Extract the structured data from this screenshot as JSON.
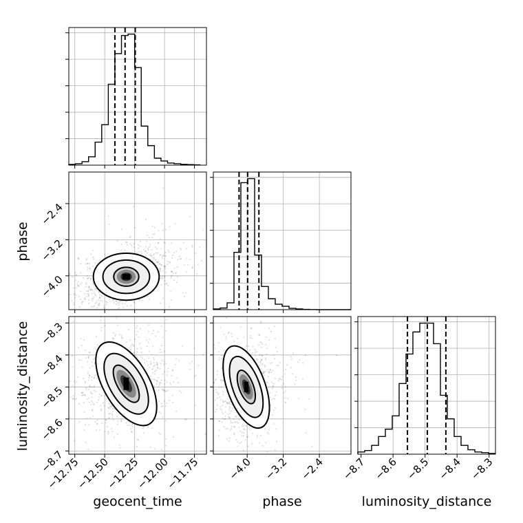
{
  "chart_data": {
    "type": "corner",
    "parameters": [
      "geocent_time",
      "phase",
      "luminosity_distance"
    ],
    "axes": {
      "geocent_time": {
        "range": [
          -12.8,
          -11.65
        ],
        "ticks": [
          -12.75,
          -12.5,
          -12.25,
          -12.0,
          -11.75
        ],
        "tick_labels": [
          "−12.75",
          "−12.50",
          "−12.25",
          "−12.00",
          "−11.75"
        ]
      },
      "phase": {
        "range": [
          -4.75,
          -1.7
        ],
        "ticks": [
          -4.0,
          -3.2,
          -2.4
        ],
        "tick_labels": [
          "−4.0",
          "−3.2",
          "−2.4"
        ]
      },
      "luminosity_distance": {
        "range": [
          -8.71,
          -8.28
        ],
        "ticks": [
          -8.7,
          -8.6,
          -8.5,
          -8.4,
          -8.3
        ],
        "tick_labels": [
          "−8.7",
          "−8.6",
          "−8.5",
          "−8.4",
          "−8.3"
        ]
      }
    },
    "histograms": [
      {
        "param": "geocent_time",
        "bin_edges": [
          -12.8,
          -12.745,
          -12.69,
          -12.635,
          -12.58,
          -12.525,
          -12.47,
          -12.415,
          -12.36,
          -12.305,
          -12.25,
          -12.195,
          -12.14,
          -12.085,
          -12.03,
          -11.975,
          -11.92,
          -11.865,
          -11.81,
          -11.755,
          -11.7
        ],
        "counts": [
          0.5,
          1.0,
          2.5,
          6.0,
          16.5,
          29.0,
          58.0,
          80.0,
          93.0,
          94.0,
          70.0,
          28.0,
          14.0,
          5.0,
          3.0,
          1.5,
          1.0,
          0.6,
          0.4,
          0.2
        ],
        "quantiles": [
          -12.415,
          -12.33,
          -12.245
        ]
      },
      {
        "param": "phase",
        "bin_edges": [
          -4.75,
          -4.5975,
          -4.445,
          -4.2925,
          -4.14,
          -3.9875,
          -3.835,
          -3.6825,
          -3.53,
          -3.3775,
          -3.225,
          -3.0725,
          -2.92,
          -2.7675,
          -2.615,
          -2.4625,
          -2.31,
          -2.1575,
          -2.005,
          -1.8525,
          -1.7
        ],
        "counts": [
          0.5,
          1.2,
          5.0,
          42.0,
          93.0,
          96.0,
          40.0,
          17.0,
          8.0,
          4.0,
          2.5,
          1.0,
          0.5,
          0.2,
          0.1,
          0.0,
          0.0,
          0.0,
          0.0,
          0.0
        ],
        "quantiles": [
          -4.18,
          -3.99,
          -3.74
        ]
      },
      {
        "param": "luminosity_distance",
        "bin_edges": [
          -8.71,
          -8.6885,
          -8.667,
          -8.6455,
          -8.624,
          -8.6025,
          -8.581,
          -8.5595,
          -8.538,
          -8.5165,
          -8.495,
          -8.4735,
          -8.452,
          -8.4305,
          -8.409,
          -8.3875,
          -8.366,
          -8.3445,
          -8.323,
          -8.3015,
          -8.28
        ],
        "counts": [
          1.5,
          2.5,
          6.0,
          12.0,
          17.0,
          26.0,
          48.0,
          68.0,
          83.0,
          89.0,
          89.0,
          75.0,
          40.0,
          24.0,
          12.0,
          6.0,
          3.0,
          1.5,
          1.0,
          0.5
        ],
        "quantiles": [
          -8.555,
          -8.493,
          -8.435
        ]
      }
    ],
    "pair_plots": [
      {
        "x": "geocent_time",
        "y": "phase",
        "center": [
          -12.32,
          -4.02
        ],
        "contours": [
          {
            "level": 0.39,
            "semi_axes": [
              0.105,
              0.21
            ],
            "rotation_deg": 0
          },
          {
            "level": 0.86,
            "semi_axes": [
              0.195,
              0.37
            ],
            "rotation_deg": 0
          },
          {
            "level": 0.99,
            "semi_axes": [
              0.275,
              0.52
            ],
            "rotation_deg": 0
          }
        ],
        "scatter_trend": {
          "slope": 1.5,
          "sx": 0.23,
          "sy": 0.32
        }
      },
      {
        "x": "geocent_time",
        "y": "luminosity_distance",
        "center": [
          -12.32,
          -8.49
        ],
        "contours": [
          {
            "level": 0.39,
            "semi_axes": [
              0.075,
              0.065
            ],
            "rotation_deg": -30
          },
          {
            "level": 0.86,
            "semi_axes": [
              0.14,
              0.105
            ],
            "rotation_deg": -30
          },
          {
            "level": 0.99,
            "semi_axes": [
              0.19,
              0.145
            ],
            "rotation_deg": -30
          }
        ],
        "scatter_trend": {
          "slope": 0.12,
          "sx": 0.2,
          "sy": 0.07
        }
      },
      {
        "x": "phase",
        "y": "luminosity_distance",
        "center": [
          -4.02,
          -8.5
        ],
        "contours": [
          {
            "level": 0.39,
            "semi_axes": [
              0.16,
              0.055
            ],
            "rotation_deg": -20
          },
          {
            "level": 0.86,
            "semi_axes": [
              0.3,
              0.1
            ],
            "rotation_deg": -20
          },
          {
            "level": 0.99,
            "semi_axes": [
              0.42,
              0.135
            ],
            "rotation_deg": -20
          }
        ],
        "scatter_trend": {
          "slope": 0.04,
          "sx": 0.33,
          "sy": 0.07
        }
      }
    ]
  }
}
